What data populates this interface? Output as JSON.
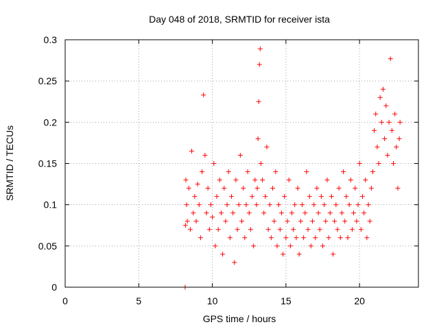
{
  "chart_data": {
    "type": "scatter",
    "title": "Day 048 of 2018, SRMTID for receiver ista",
    "xlabel": "GPS time / hours",
    "ylabel": "SRMTID / TECUs",
    "xlim": [
      0,
      24
    ],
    "ylim": [
      0,
      0.3
    ],
    "x_ticks": [
      "0",
      "5",
      "10",
      "15",
      "20"
    ],
    "y_ticks": [
      "0",
      "0.05",
      "0.1",
      "0.15",
      "0.2",
      "0.25",
      "0.3"
    ],
    "grid": true,
    "legend": "none",
    "marker": "plus",
    "series_color": "#ff0000",
    "series": [
      {
        "x": [
          8.15,
          8.17,
          8.2,
          8.25,
          8.3,
          8.4,
          8.5,
          8.6,
          8.7,
          8.8,
          8.9,
          9.0,
          9.1,
          9.2,
          9.3,
          9.4,
          9.5,
          9.6,
          9.7,
          9.8,
          9.9,
          10.0,
          10.1,
          10.2,
          10.3,
          10.4,
          10.5,
          10.6,
          10.7,
          10.8,
          10.9,
          11.0,
          11.1,
          11.2,
          11.3,
          11.4,
          11.5,
          11.6,
          11.7,
          11.8,
          11.9,
          12.0,
          12.1,
          12.2,
          12.3,
          12.4,
          12.5,
          12.6,
          12.7,
          12.8,
          12.9,
          13.0,
          13.05,
          13.1,
          13.15,
          13.2,
          13.25,
          13.3,
          13.4,
          13.5,
          13.6,
          13.7,
          13.8,
          13.9,
          14.0,
          14.1,
          14.2,
          14.3,
          14.4,
          14.5,
          14.6,
          14.7,
          14.8,
          14.9,
          15.0,
          15.1,
          15.2,
          15.3,
          15.4,
          15.5,
          15.6,
          15.7,
          15.8,
          15.9,
          16.0,
          16.1,
          16.2,
          16.3,
          16.4,
          16.5,
          16.6,
          16.7,
          16.8,
          16.9,
          17.0,
          17.1,
          17.2,
          17.3,
          17.4,
          17.5,
          17.6,
          17.7,
          17.8,
          17.9,
          18.0,
          18.1,
          18.2,
          18.3,
          18.4,
          18.5,
          18.6,
          18.7,
          18.8,
          18.9,
          19.0,
          19.1,
          19.2,
          19.3,
          19.4,
          19.5,
          19.6,
          19.7,
          19.8,
          19.9,
          20.0,
          20.1,
          20.2,
          20.3,
          20.4,
          20.5,
          20.6,
          20.7,
          20.8,
          20.9,
          21.0,
          21.1,
          21.2,
          21.3,
          21.4,
          21.5,
          21.6,
          21.7,
          21.8,
          21.9,
          22.0,
          22.1,
          22.2,
          22.3,
          22.4,
          22.5,
          22.6,
          22.7,
          22.75
        ],
        "y": [
          0.0,
          0.075,
          0.13,
          0.1,
          0.08,
          0.12,
          0.07,
          0.165,
          0.09,
          0.11,
          0.08,
          0.125,
          0.1,
          0.06,
          0.14,
          0.233,
          0.16,
          0.09,
          0.12,
          0.07,
          0.1,
          0.085,
          0.15,
          0.05,
          0.11,
          0.07,
          0.13,
          0.09,
          0.04,
          0.12,
          0.08,
          0.1,
          0.14,
          0.06,
          0.11,
          0.09,
          0.03,
          0.13,
          0.07,
          0.1,
          0.16,
          0.08,
          0.12,
          0.06,
          0.1,
          0.14,
          0.09,
          0.07,
          0.11,
          0.05,
          0.13,
          0.1,
          0.12,
          0.18,
          0.225,
          0.27,
          0.289,
          0.15,
          0.13,
          0.09,
          0.11,
          0.17,
          0.07,
          0.1,
          0.06,
          0.12,
          0.08,
          0.14,
          0.05,
          0.1,
          0.07,
          0.09,
          0.04,
          0.11,
          0.06,
          0.08,
          0.13,
          0.05,
          0.09,
          0.07,
          0.1,
          0.06,
          0.12,
          0.04,
          0.08,
          0.1,
          0.06,
          0.09,
          0.14,
          0.07,
          0.11,
          0.05,
          0.08,
          0.1,
          0.06,
          0.12,
          0.09,
          0.07,
          0.11,
          0.05,
          0.1,
          0.08,
          0.13,
          0.06,
          0.09,
          0.11,
          0.04,
          0.08,
          0.1,
          0.07,
          0.12,
          0.06,
          0.09,
          0.14,
          0.08,
          0.11,
          0.06,
          0.1,
          0.13,
          0.07,
          0.09,
          0.12,
          0.08,
          0.1,
          0.15,
          0.07,
          0.11,
          0.09,
          0.13,
          0.06,
          0.1,
          0.08,
          0.12,
          0.14,
          0.19,
          0.21,
          0.17,
          0.15,
          0.23,
          0.2,
          0.24,
          0.18,
          0.22,
          0.16,
          0.2,
          0.277,
          0.19,
          0.15,
          0.21,
          0.17,
          0.12,
          0.18,
          0.2
        ]
      }
    ]
  }
}
